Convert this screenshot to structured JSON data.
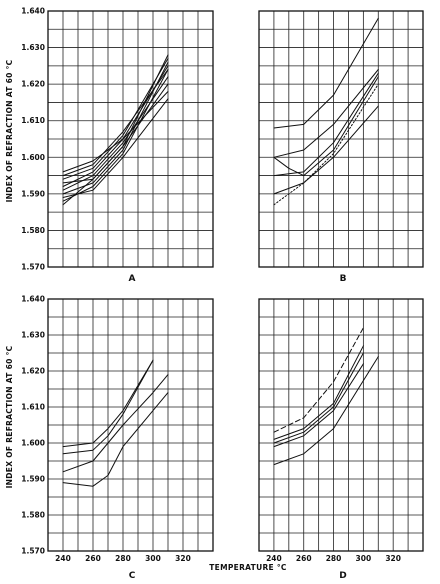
{
  "chart_data": [
    {
      "type": "line",
      "panel": "A",
      "ylabel": "INDEX OF REFRACTION AT 60 °C",
      "xlabel": "",
      "xlim": [
        230,
        340
      ],
      "ylim": [
        1.57,
        1.64
      ],
      "yticks": [
        "1.640",
        "1.630",
        "1.620",
        "1.610",
        "1.600",
        "1.590",
        "1.580",
        "1.570"
      ],
      "xticks": [],
      "series": [
        {
          "style": "solid",
          "x": [
            240,
            260,
            280,
            310
          ],
          "y": [
            1.587,
            1.594,
            1.603,
            1.628
          ]
        },
        {
          "style": "solid",
          "x": [
            240,
            260,
            280,
            310
          ],
          "y": [
            1.588,
            1.592,
            1.601,
            1.624
          ]
        },
        {
          "style": "solid",
          "x": [
            240,
            260,
            280,
            310
          ],
          "y": [
            1.59,
            1.593,
            1.602,
            1.626
          ]
        },
        {
          "style": "solid",
          "x": [
            240,
            260,
            280,
            310
          ],
          "y": [
            1.591,
            1.595,
            1.604,
            1.622
          ]
        },
        {
          "style": "solid",
          "x": [
            240,
            260,
            280,
            310
          ],
          "y": [
            1.592,
            1.596,
            1.605,
            1.625
          ]
        },
        {
          "style": "solid",
          "x": [
            240,
            260,
            280,
            310
          ],
          "y": [
            1.593,
            1.594,
            1.603,
            1.62
          ]
        },
        {
          "style": "solid",
          "x": [
            240,
            260,
            280,
            310
          ],
          "y": [
            1.594,
            1.597,
            1.606,
            1.627
          ]
        },
        {
          "style": "solid",
          "x": [
            240,
            260,
            280,
            310
          ],
          "y": [
            1.595,
            1.598,
            1.607,
            1.624
          ]
        },
        {
          "style": "solid",
          "x": [
            240,
            260,
            280,
            310
          ],
          "y": [
            1.596,
            1.599,
            1.605,
            1.618
          ]
        },
        {
          "style": "solid",
          "x": [
            240,
            260,
            280,
            310
          ],
          "y": [
            1.589,
            1.591,
            1.6,
            1.616
          ]
        }
      ]
    },
    {
      "type": "line",
      "panel": "B",
      "ylabel": "",
      "xlabel": "",
      "xlim": [
        230,
        340
      ],
      "ylim": [
        1.57,
        1.64
      ],
      "yticks": [],
      "xticks": [],
      "series": [
        {
          "style": "solid",
          "x": [
            240,
            260,
            280,
            310
          ],
          "y": [
            1.608,
            1.609,
            1.617,
            1.638
          ]
        },
        {
          "style": "solid",
          "x": [
            240,
            260,
            280,
            310
          ],
          "y": [
            1.6,
            1.602,
            1.609,
            1.624
          ]
        },
        {
          "style": "solid",
          "x": [
            240,
            250,
            260,
            280,
            310
          ],
          "y": [
            1.6,
            1.597,
            1.595,
            1.602,
            1.622
          ]
        },
        {
          "style": "solid",
          "x": [
            240,
            260,
            280,
            310
          ],
          "y": [
            1.595,
            1.596,
            1.604,
            1.623
          ]
        },
        {
          "style": "solid",
          "x": [
            240,
            260,
            280,
            310
          ],
          "y": [
            1.59,
            1.593,
            1.6,
            1.614
          ]
        },
        {
          "style": "dotted",
          "x": [
            240,
            260,
            280,
            310
          ],
          "y": [
            1.587,
            1.593,
            1.601,
            1.62
          ]
        }
      ]
    },
    {
      "type": "line",
      "panel": "C",
      "ylabel": "INDEX OF REFRACTION AT 60 °C",
      "xlabel": "",
      "xlim": [
        230,
        340
      ],
      "ylim": [
        1.57,
        1.64
      ],
      "yticks": [
        "1.640",
        "1.630",
        "1.620",
        "1.610",
        "1.600",
        "1.590",
        "1.580",
        "1.570"
      ],
      "xticks": [
        "240",
        "260",
        "280",
        "300",
        "320"
      ],
      "series": [
        {
          "style": "solid",
          "x": [
            240,
            260,
            270,
            280,
            300
          ],
          "y": [
            1.599,
            1.6,
            1.604,
            1.609,
            1.623
          ]
        },
        {
          "style": "solid",
          "x": [
            240,
            260,
            270,
            280,
            300
          ],
          "y": [
            1.597,
            1.598,
            1.602,
            1.608,
            1.623
          ]
        },
        {
          "style": "solid",
          "x": [
            240,
            260,
            270,
            280,
            300,
            310
          ],
          "y": [
            1.592,
            1.595,
            1.6,
            1.605,
            1.614,
            1.619
          ]
        },
        {
          "style": "solid",
          "x": [
            240,
            260,
            270,
            280,
            300,
            310
          ],
          "y": [
            1.589,
            1.588,
            1.591,
            1.599,
            1.609,
            1.614
          ]
        }
      ]
    },
    {
      "type": "line",
      "panel": "D",
      "ylabel": "",
      "xlabel": "TEMPERATURE °C",
      "xlim": [
        230,
        340
      ],
      "ylim": [
        1.57,
        1.64
      ],
      "yticks": [],
      "xticks": [
        "240",
        "260",
        "280",
        "300",
        "320"
      ],
      "series": [
        {
          "style": "dashed",
          "x": [
            240,
            260,
            280,
            300
          ],
          "y": [
            1.603,
            1.607,
            1.617,
            1.632
          ]
        },
        {
          "style": "solid",
          "x": [
            240,
            260,
            280,
            300
          ],
          "y": [
            1.601,
            1.604,
            1.611,
            1.627
          ]
        },
        {
          "style": "solid",
          "x": [
            240,
            260,
            280,
            300
          ],
          "y": [
            1.6,
            1.603,
            1.61,
            1.625
          ]
        },
        {
          "style": "solid",
          "x": [
            240,
            260,
            280,
            300
          ],
          "y": [
            1.599,
            1.602,
            1.609,
            1.622
          ]
        },
        {
          "style": "solid",
          "x": [
            240,
            260,
            280,
            310
          ],
          "y": [
            1.594,
            1.597,
            1.604,
            1.624
          ]
        }
      ]
    }
  ]
}
